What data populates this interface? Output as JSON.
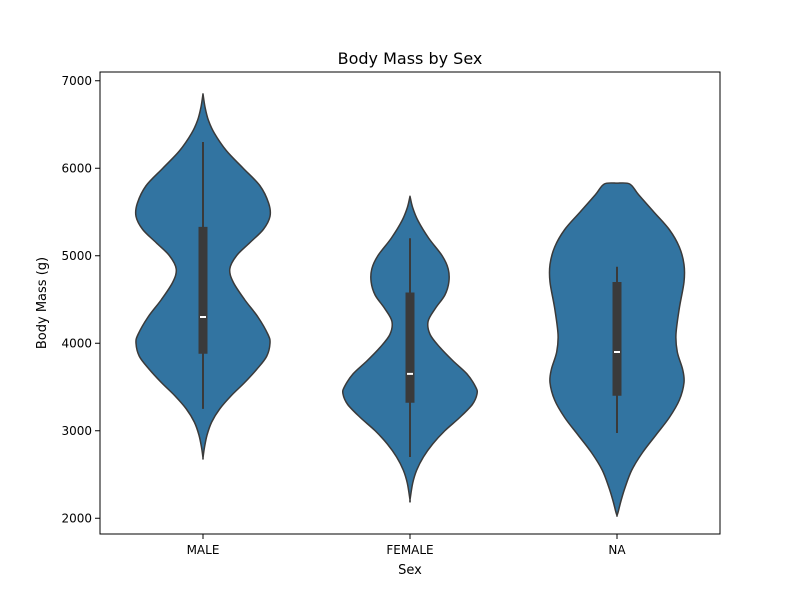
{
  "chart_data": {
    "type": "violin",
    "title": "Body Mass by Sex",
    "xlabel": "Sex",
    "ylabel": "Body Mass (g)",
    "categories": [
      "MALE",
      "FEMALE",
      "NA"
    ],
    "ylim": [
      1820,
      7100
    ],
    "yticks": [
      2000,
      3000,
      4000,
      5000,
      6000,
      7000
    ],
    "grid": false,
    "colors": {
      "violin_fill": "#3274a1",
      "violin_edge": "#3a3a3a",
      "box": "#3a3a3a",
      "median": "#ffffff"
    },
    "violins": [
      {
        "category": "MALE",
        "density_range": [
          2690,
          6850
        ],
        "density_profile": [
          [
            6850,
            0.0
          ],
          [
            6700,
            0.03
          ],
          [
            6550,
            0.08
          ],
          [
            6400,
            0.17
          ],
          [
            6200,
            0.35
          ],
          [
            6000,
            0.6
          ],
          [
            5800,
            0.85
          ],
          [
            5600,
            0.98
          ],
          [
            5450,
            1.0
          ],
          [
            5300,
            0.9
          ],
          [
            5150,
            0.7
          ],
          [
            5000,
            0.5
          ],
          [
            4850,
            0.4
          ],
          [
            4700,
            0.45
          ],
          [
            4500,
            0.62
          ],
          [
            4300,
            0.82
          ],
          [
            4100,
            0.97
          ],
          [
            4000,
            1.0
          ],
          [
            3850,
            0.95
          ],
          [
            3700,
            0.8
          ],
          [
            3550,
            0.62
          ],
          [
            3400,
            0.42
          ],
          [
            3250,
            0.25
          ],
          [
            3100,
            0.13
          ],
          [
            2950,
            0.06
          ],
          [
            2800,
            0.02
          ],
          [
            2690,
            0.0
          ]
        ],
        "whisker": [
          3250,
          6300
        ],
        "q1": 3880,
        "median": 4300,
        "q3": 5330
      },
      {
        "category": "FEMALE",
        "density_range": [
          2210,
          5680
        ],
        "density_profile": [
          [
            5680,
            0.0
          ],
          [
            5550,
            0.04
          ],
          [
            5400,
            0.12
          ],
          [
            5200,
            0.28
          ],
          [
            5000,
            0.48
          ],
          [
            4850,
            0.57
          ],
          [
            4700,
            0.58
          ],
          [
            4550,
            0.52
          ],
          [
            4400,
            0.38
          ],
          [
            4250,
            0.27
          ],
          [
            4100,
            0.3
          ],
          [
            3950,
            0.45
          ],
          [
            3800,
            0.64
          ],
          [
            3650,
            0.85
          ],
          [
            3500,
            0.98
          ],
          [
            3420,
            1.0
          ],
          [
            3300,
            0.93
          ],
          [
            3150,
            0.74
          ],
          [
            3000,
            0.52
          ],
          [
            2850,
            0.34
          ],
          [
            2700,
            0.2
          ],
          [
            2550,
            0.1
          ],
          [
            2400,
            0.04
          ],
          [
            2210,
            0.0
          ]
        ],
        "whisker": [
          2700,
          5200
        ],
        "q1": 3320,
        "median": 3650,
        "q3": 4580
      },
      {
        "category": "NA",
        "density_range": [
          2030,
          5830
        ],
        "density_profile": [
          [
            5830,
            0.0
          ],
          [
            5820,
            0.19
          ],
          [
            5700,
            0.32
          ],
          [
            5500,
            0.55
          ],
          [
            5300,
            0.78
          ],
          [
            5100,
            0.93
          ],
          [
            4900,
            1.0
          ],
          [
            4700,
            1.0
          ],
          [
            4400,
            0.93
          ],
          [
            4100,
            0.88
          ],
          [
            3900,
            0.9
          ],
          [
            3700,
            0.98
          ],
          [
            3550,
            1.0
          ],
          [
            3350,
            0.93
          ],
          [
            3150,
            0.78
          ],
          [
            2950,
            0.58
          ],
          [
            2750,
            0.38
          ],
          [
            2550,
            0.22
          ],
          [
            2350,
            0.12
          ],
          [
            2200,
            0.06
          ],
          [
            2080,
            0.02
          ],
          [
            2030,
            0.0
          ]
        ],
        "whisker": [
          2975,
          4875
        ],
        "q1": 3400,
        "median": 3900,
        "q3": 4700
      }
    ]
  }
}
